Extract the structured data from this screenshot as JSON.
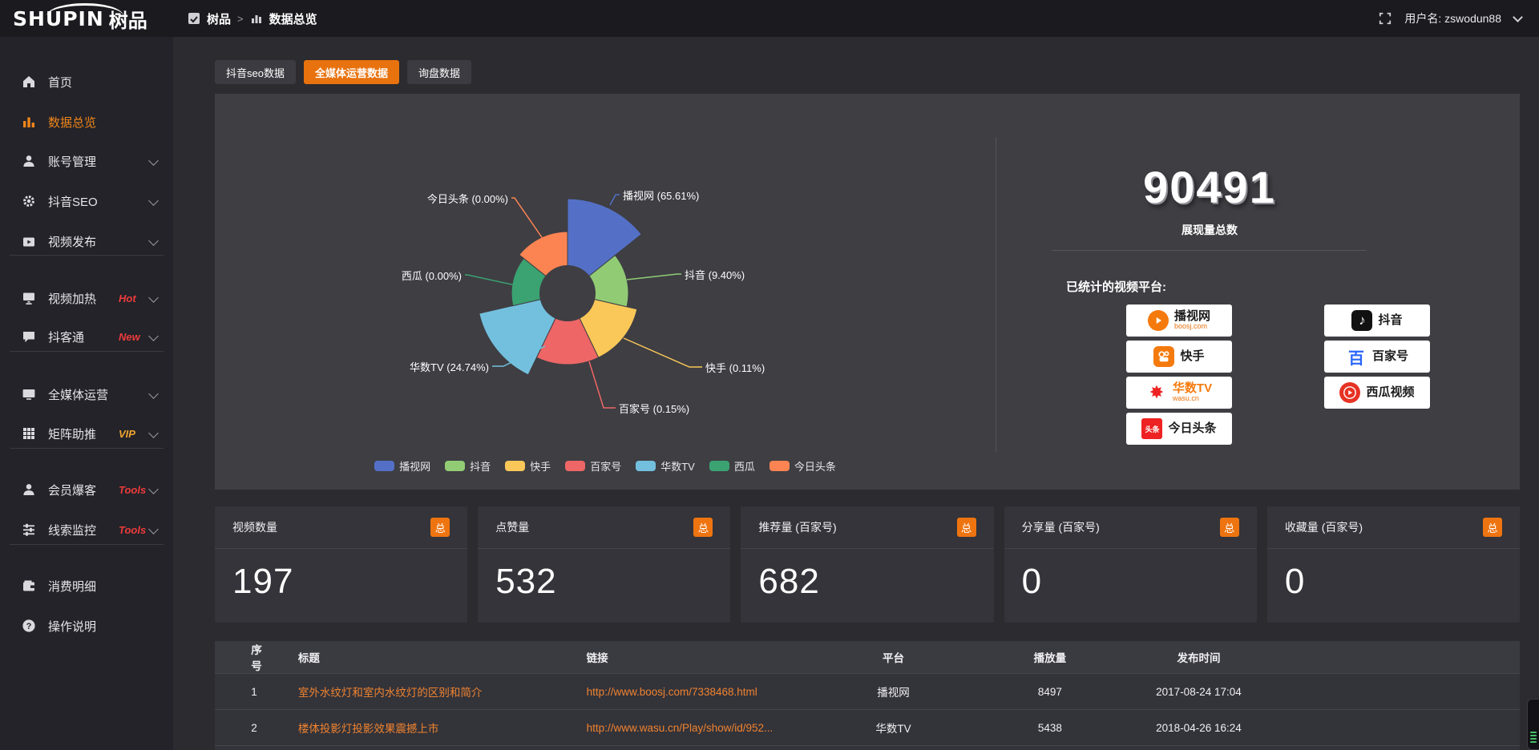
{
  "topbar": {
    "logo_en": "SHUPIN",
    "logo_cn": "树品",
    "breadcrumb": [
      "树品",
      "数据总览"
    ],
    "username": "用户名: zswodun88"
  },
  "sidebar": {
    "items": [
      {
        "label": "首页",
        "icon": "home-icon",
        "active": false,
        "chevron": false,
        "badge": "",
        "divider_after": false
      },
      {
        "label": "数据总览",
        "icon": "bar-chart-icon",
        "active": true,
        "chevron": false,
        "badge": "",
        "divider_after": false
      },
      {
        "label": "账号管理",
        "icon": "user-icon",
        "active": false,
        "chevron": true,
        "badge": "",
        "divider_after": false
      },
      {
        "label": "抖音SEO",
        "icon": "gear-icon",
        "active": false,
        "chevron": true,
        "badge": "",
        "divider_after": false
      },
      {
        "label": "视频发布",
        "icon": "video-icon",
        "active": false,
        "chevron": true,
        "badge": "",
        "divider_after": true
      },
      {
        "label": "视频加热",
        "icon": "screen-icon",
        "active": false,
        "chevron": true,
        "badge": "Hot",
        "badge_color": "#ee3b3b",
        "divider_after": false
      },
      {
        "label": "抖客通",
        "icon": "chat-icon",
        "active": false,
        "chevron": true,
        "badge": "New",
        "badge_color": "#ee3b3b",
        "divider_after": true
      },
      {
        "label": "全媒体运营",
        "icon": "monitor-icon",
        "active": false,
        "chevron": true,
        "badge": "",
        "divider_after": false
      },
      {
        "label": "矩阵助推",
        "icon": "grid-icon",
        "active": false,
        "chevron": true,
        "badge": "VIP",
        "badge_color": "#f0a32f",
        "divider_after": true
      },
      {
        "label": "会员爆客",
        "icon": "member-icon",
        "active": false,
        "chevron": true,
        "badge": "Tools",
        "badge_color": "#ee3b3b",
        "divider_after": false
      },
      {
        "label": "线索监控",
        "icon": "sliders-icon",
        "active": false,
        "chevron": true,
        "badge": "Tools",
        "badge_color": "#ee3b3b",
        "divider_after": true
      },
      {
        "label": "消费明细",
        "icon": "wallet-icon",
        "active": false,
        "chevron": false,
        "badge": "",
        "divider_after": false
      },
      {
        "label": "操作说明",
        "icon": "help-icon",
        "active": false,
        "chevron": false,
        "badge": "",
        "divider_after": false
      }
    ]
  },
  "tabs": [
    {
      "label": "抖音seo数据",
      "active": false
    },
    {
      "label": "全媒体运营数据",
      "active": true
    },
    {
      "label": "询盘数据",
      "active": false
    }
  ],
  "chart_data": {
    "type": "pie",
    "variant": "nightingale-rose",
    "label_format": "{name} ({percent}%)",
    "legend_position": "bottom",
    "items": [
      {
        "name": "播视网",
        "percent": 65.61,
        "color": "#5470c6"
      },
      {
        "name": "抖音",
        "percent": 9.4,
        "color": "#91cc75"
      },
      {
        "name": "快手",
        "percent": 0.11,
        "color": "#fac858"
      },
      {
        "name": "百家号",
        "percent": 0.15,
        "color": "#ee6666"
      },
      {
        "name": "华数TV",
        "percent": 24.74,
        "color": "#73c0de"
      },
      {
        "name": "西瓜",
        "percent": 0.0,
        "color": "#3ba272"
      },
      {
        "name": "今日头条",
        "percent": 0.0,
        "color": "#fc8452"
      }
    ]
  },
  "summary": {
    "total": "90491",
    "total_label": "展现量总数",
    "platforms_label": "已统计的视频平台:",
    "platforms": [
      {
        "name": "播视网",
        "sub": "boosj.com",
        "icon": "boosj-logo",
        "column": 0
      },
      {
        "name": "快手",
        "sub": "",
        "icon": "kuaishou-logo",
        "column": 0
      },
      {
        "name": "华数TV",
        "sub": "wasu.cn",
        "icon": "wasu-logo",
        "column": 0
      },
      {
        "name": "今日头条",
        "sub": "",
        "icon": "toutiao-logo",
        "column": 0
      },
      {
        "name": "抖音",
        "sub": "",
        "icon": "douyin-logo",
        "column": 1
      },
      {
        "name": "百家号",
        "sub": "",
        "icon": "baijiahao-logo",
        "column": 1
      },
      {
        "name": "西瓜视频",
        "sub": "",
        "icon": "xigua-logo",
        "column": 1
      }
    ]
  },
  "stat_cards": [
    {
      "title": "视频数量",
      "badge": "总",
      "value": "197"
    },
    {
      "title": "点赞量",
      "badge": "总",
      "value": "532"
    },
    {
      "title": "推荐量 (百家号)",
      "badge": "总",
      "value": "682"
    },
    {
      "title": "分享量 (百家号)",
      "badge": "总",
      "value": "0"
    },
    {
      "title": "收藏量 (百家号)",
      "badge": "总",
      "value": "0"
    }
  ],
  "table": {
    "headers": [
      "序号",
      "标题",
      "链接",
      "平台",
      "播放量",
      "发布时间"
    ],
    "rows": [
      {
        "index": "1",
        "title": "室外水纹灯和室内水纹灯的区别和简介",
        "link": "http://www.boosj.com/7338468.html",
        "platform": "播视网",
        "plays": "8497",
        "time": "2017-08-24 17:04"
      },
      {
        "index": "2",
        "title": "楼体投影灯投影效果震撼上市",
        "link": "http://www.wasu.cn/Play/show/id/952...",
        "platform": "华数TV",
        "plays": "5438",
        "time": "2018-04-26 16:24"
      }
    ]
  }
}
